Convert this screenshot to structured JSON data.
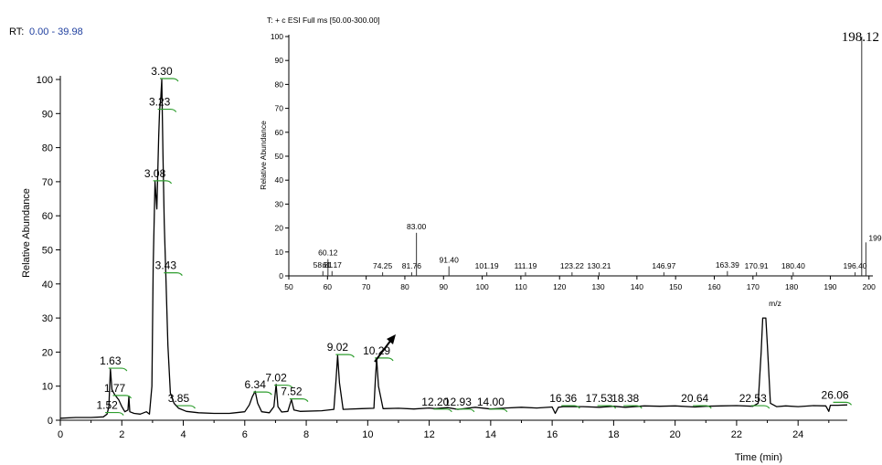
{
  "header": {
    "rt_prefix": "RT:",
    "rt_range": "0.00 - 39.98"
  },
  "colors": {
    "trace": "#000000",
    "peak_marker": "#2e9e2e",
    "rt_range_text": "#1f3f9f"
  },
  "chart_data": [
    {
      "type": "line",
      "xlabel": "Time (min)",
      "ylabel": "Relative Abundance",
      "xlim": [
        0,
        25.6
      ],
      "ylim": [
        0,
        100
      ],
      "xticks": [
        0,
        2,
        4,
        6,
        8,
        10,
        12,
        14,
        16,
        18,
        20,
        22,
        24
      ],
      "yticks": [
        0,
        10,
        20,
        30,
        40,
        50,
        60,
        70,
        80,
        90,
        100
      ],
      "grid": false,
      "peaks": [
        {
          "label": "1.52",
          "x": 1.52,
          "y": 2
        },
        {
          "label": "1.63",
          "x": 1.63,
          "y": 15
        },
        {
          "label": "1.77",
          "x": 1.77,
          "y": 7
        },
        {
          "label": "3.08",
          "x": 3.08,
          "y": 70
        },
        {
          "label": "3.23",
          "x": 3.23,
          "y": 91
        },
        {
          "label": "3.30",
          "x": 3.3,
          "y": 100
        },
        {
          "label": "3.43",
          "x": 3.43,
          "y": 43
        },
        {
          "label": "3.85",
          "x": 3.85,
          "y": 4
        },
        {
          "label": "6.34",
          "x": 6.34,
          "y": 8
        },
        {
          "label": "7.02",
          "x": 7.02,
          "y": 10
        },
        {
          "label": "7.52",
          "x": 7.52,
          "y": 6
        },
        {
          "label": "9.02",
          "x": 9.02,
          "y": 19
        },
        {
          "label": "10.29",
          "x": 10.29,
          "y": 18
        },
        {
          "label": "12.20",
          "x": 12.2,
          "y": 3
        },
        {
          "label": "12.93",
          "x": 12.93,
          "y": 3
        },
        {
          "label": "14.00",
          "x": 14.0,
          "y": 3
        },
        {
          "label": "16.36",
          "x": 16.36,
          "y": 4
        },
        {
          "label": "17.53",
          "x": 17.53,
          "y": 4
        },
        {
          "label": "18.38",
          "x": 18.38,
          "y": 4
        },
        {
          "label": "20.64",
          "x": 20.64,
          "y": 4
        },
        {
          "label": "22.53",
          "x": 22.53,
          "y": 4
        },
        {
          "label": "26.06",
          "x": 25.2,
          "y": 5
        }
      ],
      "trace": [
        [
          0,
          0.6
        ],
        [
          0.5,
          0.8
        ],
        [
          1.0,
          0.8
        ],
        [
          1.4,
          1.0
        ],
        [
          1.52,
          1.8
        ],
        [
          1.58,
          4
        ],
        [
          1.63,
          15
        ],
        [
          1.68,
          9
        ],
        [
          1.77,
          7.5
        ],
        [
          1.9,
          6
        ],
        [
          2.0,
          4
        ],
        [
          2.1,
          2.5
        ],
        [
          2.2,
          3
        ],
        [
          2.23,
          7
        ],
        [
          2.26,
          2.5
        ],
        [
          2.4,
          2
        ],
        [
          2.6,
          1.8
        ],
        [
          2.8,
          2.5
        ],
        [
          2.9,
          1.8
        ],
        [
          2.98,
          10
        ],
        [
          3.02,
          45
        ],
        [
          3.08,
          70
        ],
        [
          3.14,
          62
        ],
        [
          3.2,
          83
        ],
        [
          3.23,
          91
        ],
        [
          3.27,
          95
        ],
        [
          3.3,
          100
        ],
        [
          3.34,
          78
        ],
        [
          3.38,
          58
        ],
        [
          3.43,
          43
        ],
        [
          3.5,
          22
        ],
        [
          3.58,
          8
        ],
        [
          3.7,
          5
        ],
        [
          3.85,
          3.5
        ],
        [
          4.1,
          2.6
        ],
        [
          4.5,
          2.2
        ],
        [
          5.0,
          2.0
        ],
        [
          5.5,
          2.0
        ],
        [
          6.0,
          2.5
        ],
        [
          6.15,
          4.5
        ],
        [
          6.25,
          7
        ],
        [
          6.34,
          8.5
        ],
        [
          6.42,
          5
        ],
        [
          6.55,
          2.5
        ],
        [
          6.8,
          2.2
        ],
        [
          6.95,
          4
        ],
        [
          7.02,
          10.5
        ],
        [
          7.08,
          4
        ],
        [
          7.2,
          2.4
        ],
        [
          7.4,
          2.6
        ],
        [
          7.48,
          5
        ],
        [
          7.52,
          6
        ],
        [
          7.6,
          3
        ],
        [
          7.8,
          2.6
        ],
        [
          8.5,
          2.8
        ],
        [
          8.9,
          3.2
        ],
        [
          8.97,
          12
        ],
        [
          9.02,
          19
        ],
        [
          9.08,
          11
        ],
        [
          9.2,
          3.2
        ],
        [
          9.8,
          3.4
        ],
        [
          10.2,
          3.5
        ],
        [
          10.25,
          12
        ],
        [
          10.29,
          18
        ],
        [
          10.35,
          10
        ],
        [
          10.5,
          3.4
        ],
        [
          11.0,
          3.5
        ],
        [
          11.5,
          3.3
        ],
        [
          12.0,
          3.6
        ],
        [
          12.2,
          3.4
        ],
        [
          12.6,
          3.7
        ],
        [
          12.93,
          3.2
        ],
        [
          13.5,
          3.8
        ],
        [
          14.0,
          3.3
        ],
        [
          14.5,
          3.6
        ],
        [
          15.0,
          3.8
        ],
        [
          15.5,
          3.6
        ],
        [
          16.0,
          3.9
        ],
        [
          16.1,
          2.0
        ],
        [
          16.2,
          3.8
        ],
        [
          16.36,
          4.0
        ],
        [
          17.0,
          4.0
        ],
        [
          17.53,
          3.8
        ],
        [
          18.0,
          4.1
        ],
        [
          18.38,
          3.8
        ],
        [
          19.0,
          4.2
        ],
        [
          19.5,
          4.1
        ],
        [
          20.0,
          4.2
        ],
        [
          20.64,
          3.9
        ],
        [
          21.0,
          4.1
        ],
        [
          21.5,
          4.2
        ],
        [
          22.0,
          4.3
        ],
        [
          22.53,
          4.1
        ],
        [
          22.7,
          5
        ],
        [
          22.8,
          20
        ],
        [
          22.85,
          30
        ],
        [
          22.9,
          30
        ],
        [
          22.95,
          30
        ],
        [
          23.0,
          22
        ],
        [
          23.1,
          5
        ],
        [
          23.3,
          4.0
        ],
        [
          23.6,
          4.2
        ],
        [
          24.0,
          4.0
        ],
        [
          24.5,
          4.3
        ],
        [
          24.9,
          4.2
        ],
        [
          25.0,
          2.6
        ],
        [
          25.05,
          4.4
        ],
        [
          25.3,
          4.4
        ],
        [
          25.6,
          4.5
        ]
      ]
    },
    {
      "type": "bar",
      "title": "T: + c ESI Full ms [50.00-300.00]",
      "xlabel": "m/z",
      "ylabel": "Relative Abundance",
      "xlim": [
        50,
        201
      ],
      "ylim": [
        0,
        100
      ],
      "xticks": [
        50,
        60,
        70,
        80,
        90,
        100,
        110,
        120,
        130,
        140,
        150,
        160,
        170,
        180,
        190,
        200
      ],
      "yticks": [
        0,
        10,
        20,
        30,
        40,
        50,
        60,
        70,
        80,
        90,
        100
      ],
      "peaks": [
        {
          "label": "58.81",
          "mz": 58.81,
          "y": 2
        },
        {
          "label": "60.12",
          "mz": 60.12,
          "y": 7
        },
        {
          "label": "61.17",
          "mz": 61.17,
          "y": 2
        },
        {
          "label": "74.25",
          "mz": 74.25,
          "y": 1.5
        },
        {
          "label": "81.76",
          "mz": 81.76,
          "y": 1.5
        },
        {
          "label": "83.00",
          "mz": 83.0,
          "y": 18
        },
        {
          "label": "91.40",
          "mz": 91.4,
          "y": 4
        },
        {
          "label": "101.19",
          "mz": 101.19,
          "y": 1.5
        },
        {
          "label": "111.19",
          "mz": 111.19,
          "y": 1.5
        },
        {
          "label": "123.22",
          "mz": 123.22,
          "y": 1.5
        },
        {
          "label": "130.21",
          "mz": 130.21,
          "y": 1.5
        },
        {
          "label": "146.97",
          "mz": 146.97,
          "y": 1.5
        },
        {
          "label": "163.39",
          "mz": 163.39,
          "y": 2
        },
        {
          "label": "170.91",
          "mz": 170.91,
          "y": 1.5
        },
        {
          "label": "180.40",
          "mz": 180.4,
          "y": 1.5
        },
        {
          "label": "196.40",
          "mz": 196.4,
          "y": 1.5
        },
        {
          "label": "198.12",
          "mz": 198.12,
          "y": 100
        },
        {
          "label": "199",
          "mz": 199.2,
          "y": 14
        }
      ]
    }
  ]
}
